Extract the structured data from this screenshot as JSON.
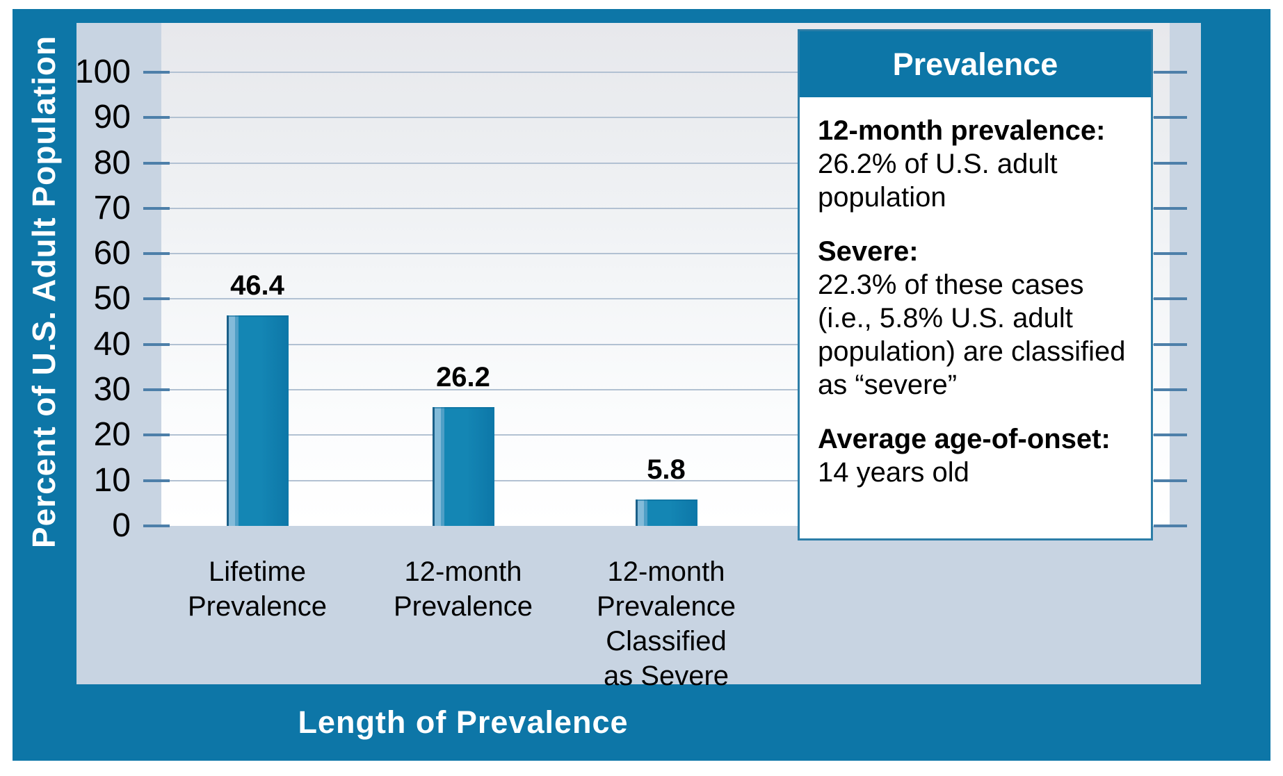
{
  "figure": {
    "y_axis_title": "Percent of U.S. Adult Population",
    "x_axis_title": "Length of Prevalence"
  },
  "callout": {
    "title": "Prevalence",
    "sections": [
      {
        "label": "12-month prevalence:",
        "text": "26.2% of U.S. adult population"
      },
      {
        "label": "Severe:",
        "text": "22.3% of these cases (i.e., 5.8% U.S. adult population) are classified as “severe”"
      },
      {
        "label": "Average age-of-onset:",
        "text": "14 years old"
      }
    ]
  },
  "chart_data": {
    "type": "bar",
    "categories": [
      "Lifetime Prevalence",
      "12-month Prevalence",
      "12-month Prevalence Classified as Severe"
    ],
    "category_lines": [
      [
        "Lifetime",
        "Prevalence"
      ],
      [
        "12-month",
        "Prevalence"
      ],
      [
        "12-month",
        "Prevalence",
        "Classified",
        "as Severe"
      ]
    ],
    "values": [
      46.4,
      26.2,
      5.8
    ],
    "value_labels": [
      "46.4",
      "26.2",
      "5.8"
    ],
    "title": "",
    "xlabel": "Length of Prevalence",
    "ylabel": "Percent of U.S. Adult Population",
    "ylim": [
      0,
      110
    ],
    "yticks": [
      0,
      10,
      20,
      30,
      40,
      50,
      60,
      70,
      80,
      90,
      100
    ],
    "grid": true,
    "legend": "none",
    "bar_color": "#0f80af"
  },
  "colors": {
    "frame_teal": "#0d76a7",
    "panel_blue_gray": "#c8d4e2",
    "gridline": "#b2c1d2",
    "tick": "#4d7fa9",
    "bar": "#0f80af",
    "bar_highlight": "#83bbd9",
    "text": "#000000",
    "callout_border": "#2c7da7"
  }
}
